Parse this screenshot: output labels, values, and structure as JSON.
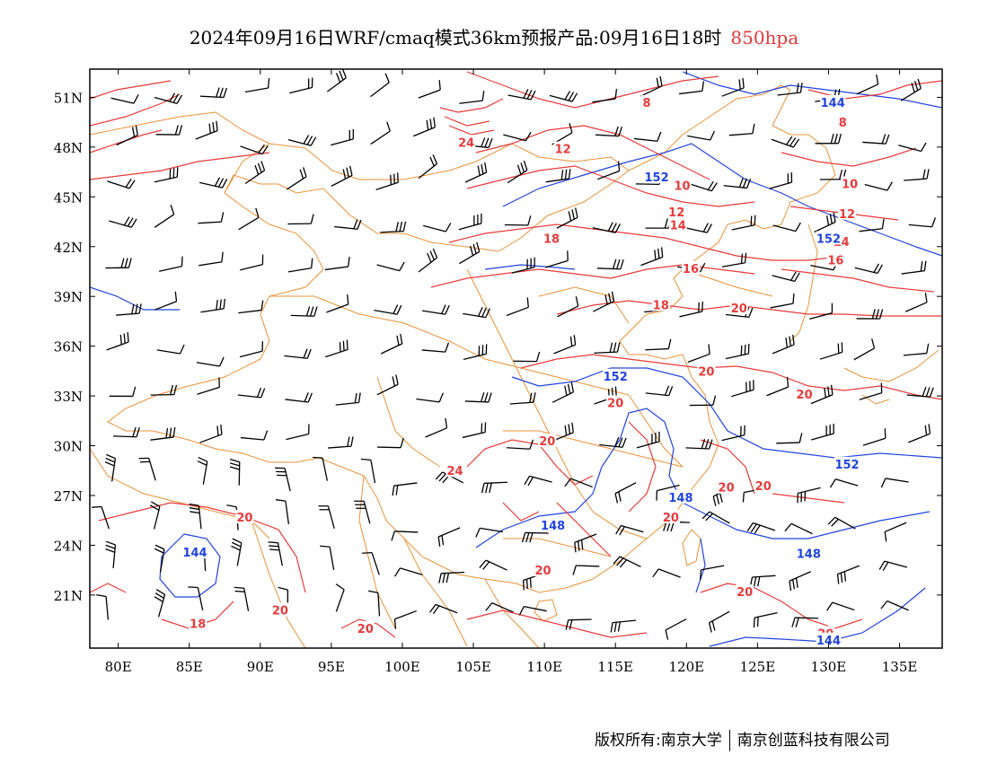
{
  "title": {
    "text": "2024年09月16日WRF/cmaq模式36km预报产品:09月16日18时",
    "level": "850hpa"
  },
  "axes": {
    "lat_labels": [
      "51N",
      "48N",
      "45N",
      "42N",
      "39N",
      "36N",
      "33N",
      "30N",
      "27N",
      "24N",
      "21N"
    ],
    "lat_values": [
      51,
      48,
      45,
      42,
      39,
      36,
      33,
      30,
      27,
      24,
      21
    ],
    "lon_labels": [
      "80E",
      "85E",
      "90E",
      "95E",
      "100E",
      "105E",
      "110E",
      "115E",
      "120E",
      "125E",
      "130E",
      "135E"
    ],
    "lon_values": [
      80,
      85,
      90,
      95,
      100,
      105,
      110,
      115,
      120,
      125,
      130,
      135
    ]
  },
  "colors": {
    "temperature": "#e63b3b",
    "height": "#2244dd",
    "border": "#e8923a",
    "barb": "#000000",
    "frame": "#000000"
  },
  "contour_labels": {
    "temperature": [
      {
        "text": "8",
        "lon": 117.2,
        "lat": 50.7
      },
      {
        "text": "24",
        "lon": 104.5,
        "lat": 48.3
      },
      {
        "text": "12",
        "lon": 111.3,
        "lat": 47.9
      },
      {
        "text": "10",
        "lon": 119.7,
        "lat": 45.7
      },
      {
        "text": "12",
        "lon": 119.3,
        "lat": 44.1
      },
      {
        "text": "14",
        "lon": 119.4,
        "lat": 43.3
      },
      {
        "text": "18",
        "lon": 110.5,
        "lat": 42.5
      },
      {
        "text": "16",
        "lon": 120.3,
        "lat": 40.7
      },
      {
        "text": "18",
        "lon": 118.2,
        "lat": 38.5
      },
      {
        "text": "20",
        "lon": 123.7,
        "lat": 38.3
      },
      {
        "text": "20",
        "lon": 121.4,
        "lat": 34.5
      },
      {
        "text": "20",
        "lon": 128.3,
        "lat": 33.1
      },
      {
        "text": "20",
        "lon": 115.0,
        "lat": 32.6
      },
      {
        "text": "20",
        "lon": 110.2,
        "lat": 30.3
      },
      {
        "text": "24",
        "lon": 103.7,
        "lat": 28.5
      },
      {
        "text": "20",
        "lon": 122.8,
        "lat": 27.5
      },
      {
        "text": "20",
        "lon": 125.4,
        "lat": 27.6
      },
      {
        "text": "20",
        "lon": 118.9,
        "lat": 25.7
      },
      {
        "text": "20",
        "lon": 88.9,
        "lat": 25.7
      },
      {
        "text": "20",
        "lon": 109.9,
        "lat": 22.5
      },
      {
        "text": "20",
        "lon": 124.1,
        "lat": 21.2
      },
      {
        "text": "20",
        "lon": 91.4,
        "lat": 20.1
      },
      {
        "text": "18",
        "lon": 85.6,
        "lat": 19.3
      },
      {
        "text": "20",
        "lon": 97.4,
        "lat": 19.0
      },
      {
        "text": "20",
        "lon": 129.8,
        "lat": 18.7
      },
      {
        "text": "8",
        "lon": 131.0,
        "lat": 49.5
      },
      {
        "text": "10",
        "lon": 131.5,
        "lat": 45.8
      },
      {
        "text": "12",
        "lon": 131.3,
        "lat": 44.0
      },
      {
        "text": "14",
        "lon": 130.9,
        "lat": 42.3
      },
      {
        "text": "16",
        "lon": 130.5,
        "lat": 41.2
      }
    ],
    "height": [
      {
        "text": "144",
        "lon": 130.3,
        "lat": 50.7
      },
      {
        "text": "152",
        "lon": 117.9,
        "lat": 46.2
      },
      {
        "text": "152",
        "lon": 130.0,
        "lat": 42.5
      },
      {
        "text": "152",
        "lon": 115.0,
        "lat": 34.2
      },
      {
        "text": "152",
        "lon": 131.3,
        "lat": 28.9
      },
      {
        "text": "148",
        "lon": 119.6,
        "lat": 26.9
      },
      {
        "text": "148",
        "lon": 110.6,
        "lat": 25.2
      },
      {
        "text": "148",
        "lon": 128.6,
        "lat": 23.5
      },
      {
        "text": "144",
        "lon": 85.4,
        "lat": 23.6
      },
      {
        "text": "144",
        "lon": 130.0,
        "lat": 18.3
      }
    ]
  },
  "footer": {
    "left": "版权所有:南京大学",
    "right": "南京创蓝科技有限公司"
  }
}
